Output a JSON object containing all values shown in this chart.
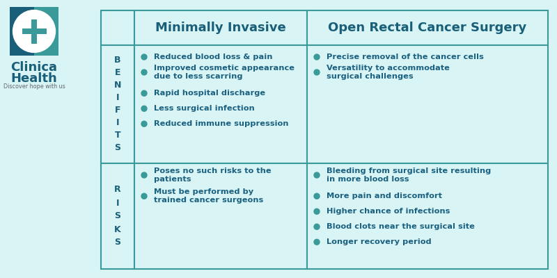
{
  "bg_color": "#d8f4f5",
  "cell_bg": "#d8f4f5",
  "border_color": "#3a9a9a",
  "header_text_color": "#1a5f7a",
  "row_label_color": "#1a5f7a",
  "body_text_color": "#1a6080",
  "bullet_color": "#3a9a9a",
  "col_header_1": "Minimally Invasive",
  "col_header_2": "Open Rectal Cancer Surgery",
  "row_label_1": "B\nE\nN\nI\nF\nI\nT\nS",
  "row_label_2": "R\nI\nS\nK\nS",
  "benefits_col1": [
    "Reduced blood loss & pain",
    "Improved cosmetic appearance\ndue to less scarring",
    "Rapid hospital discharge",
    "Less surgical infection",
    "Reduced immune suppression"
  ],
  "benefits_col2": [
    "Precise removal of the cancer cells",
    "Versatility to accommodate\nsurgical challenges"
  ],
  "risks_col1": [
    "Poses no such risks to the\npatients",
    "Must be performed by\ntrained cancer surgeons"
  ],
  "risks_col2": [
    "Bleeding from surgical site resulting\nin more blood loss",
    "More pain and discomfort",
    "Higher chance of infections",
    "Blood clots near the surgical site",
    "Longer recovery period"
  ],
  "logo_text_1": "Clinica",
  "logo_text_2": "Health",
  "logo_sub": "Discover hope with us",
  "logo_color_dark": "#1a5f7a",
  "logo_color_teal": "#3a9a9a",
  "logo_bg_blue": "#1a5f7a",
  "logo_bg_teal": "#3a9a9a"
}
